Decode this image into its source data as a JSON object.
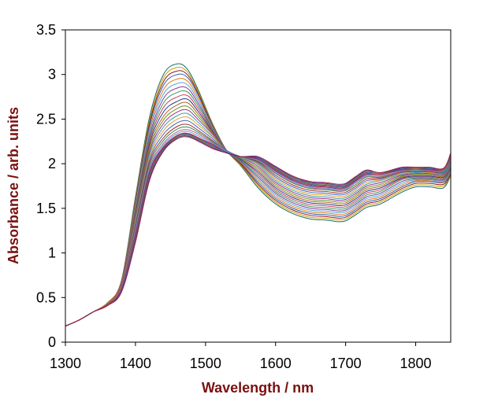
{
  "chart_data": {
    "type": "line",
    "xlabel": "Wavelength / nm",
    "ylabel": "Absorbance / arb. units",
    "xlim": [
      1300,
      1850
    ],
    "ylim": [
      0,
      3.5
    ],
    "x_ticks": [
      "1300",
      "1400",
      "1500",
      "1600",
      "1700",
      "1800"
    ],
    "y_ticks": [
      "0",
      "0.5",
      "1",
      "1.5",
      "2",
      "2.5",
      "3",
      "3.5"
    ],
    "grid": false,
    "legend": "none",
    "series_count": 26,
    "x": [
      1300,
      1320,
      1340,
      1360,
      1380,
      1400,
      1420,
      1440,
      1460,
      1475,
      1490,
      1510,
      1530,
      1550,
      1575,
      1600,
      1625,
      1650,
      1670,
      1680,
      1690,
      1700,
      1715,
      1730,
      1750,
      1780,
      1800,
      1820,
      1840,
      1850
    ],
    "series": [
      {
        "values": [
          0.18,
          0.25,
          0.34,
          0.44,
          0.69,
          1.63,
          2.52,
          3.0,
          3.12,
          3.05,
          2.82,
          2.45,
          2.15,
          1.98,
          1.73,
          1.55,
          1.44,
          1.38,
          1.37,
          1.36,
          1.35,
          1.36,
          1.43,
          1.51,
          1.55,
          1.68,
          1.74,
          1.74,
          1.73,
          1.87
        ],
        "color": "#1a6b6b"
      },
      {
        "values": [
          0.18,
          0.25,
          0.34,
          0.44,
          0.68,
          1.6,
          2.48,
          2.96,
          3.08,
          3.02,
          2.8,
          2.44,
          2.15,
          1.99,
          1.75,
          1.57,
          1.46,
          1.4,
          1.39,
          1.38,
          1.37,
          1.38,
          1.45,
          1.53,
          1.57,
          1.7,
          1.76,
          1.76,
          1.75,
          1.88
        ],
        "color": "#c8a000"
      },
      {
        "values": [
          0.18,
          0.25,
          0.34,
          0.44,
          0.68,
          1.58,
          2.45,
          2.92,
          3.04,
          2.99,
          2.78,
          2.43,
          2.15,
          2.0,
          1.77,
          1.59,
          1.48,
          1.42,
          1.41,
          1.4,
          1.39,
          1.4,
          1.47,
          1.55,
          1.59,
          1.72,
          1.78,
          1.78,
          1.77,
          1.89
        ],
        "color": "#8b1a1a"
      },
      {
        "values": [
          0.18,
          0.25,
          0.34,
          0.44,
          0.67,
          1.56,
          2.42,
          2.88,
          3.0,
          2.96,
          2.76,
          2.42,
          2.15,
          2.01,
          1.79,
          1.61,
          1.5,
          1.44,
          1.43,
          1.42,
          1.41,
          1.42,
          1.49,
          1.57,
          1.61,
          1.74,
          1.8,
          1.8,
          1.79,
          1.9
        ],
        "color": "#2f5fa8"
      },
      {
        "values": [
          0.18,
          0.25,
          0.34,
          0.44,
          0.67,
          1.54,
          2.38,
          2.83,
          2.95,
          2.92,
          2.73,
          2.41,
          2.15,
          2.02,
          1.81,
          1.63,
          1.52,
          1.46,
          1.45,
          1.44,
          1.43,
          1.44,
          1.51,
          1.59,
          1.63,
          1.76,
          1.81,
          1.81,
          1.8,
          1.91
        ],
        "color": "#e07b1a"
      },
      {
        "values": [
          0.18,
          0.25,
          0.34,
          0.43,
          0.66,
          1.52,
          2.35,
          2.78,
          2.9,
          2.88,
          2.7,
          2.4,
          2.15,
          2.03,
          1.83,
          1.65,
          1.54,
          1.48,
          1.47,
          1.46,
          1.45,
          1.46,
          1.53,
          1.61,
          1.65,
          1.78,
          1.82,
          1.82,
          1.81,
          1.92
        ],
        "color": "#5aa0d0"
      },
      {
        "values": [
          0.18,
          0.25,
          0.34,
          0.43,
          0.66,
          1.5,
          2.31,
          2.73,
          2.85,
          2.84,
          2.67,
          2.39,
          2.15,
          2.03,
          1.85,
          1.67,
          1.56,
          1.5,
          1.49,
          1.48,
          1.47,
          1.48,
          1.55,
          1.63,
          1.67,
          1.8,
          1.83,
          1.83,
          1.82,
          1.93
        ],
        "color": "#7b3fa0"
      },
      {
        "values": [
          0.18,
          0.25,
          0.34,
          0.43,
          0.65,
          1.48,
          2.28,
          2.68,
          2.8,
          2.8,
          2.64,
          2.38,
          2.15,
          2.04,
          1.87,
          1.69,
          1.58,
          1.52,
          1.51,
          1.5,
          1.49,
          1.5,
          1.57,
          1.65,
          1.69,
          1.82,
          1.84,
          1.84,
          1.83,
          1.94
        ],
        "color": "#3a9a5a"
      },
      {
        "values": [
          0.18,
          0.25,
          0.34,
          0.43,
          0.65,
          1.46,
          2.25,
          2.63,
          2.75,
          2.76,
          2.61,
          2.37,
          2.15,
          2.05,
          1.89,
          1.71,
          1.6,
          1.54,
          1.53,
          1.52,
          1.51,
          1.52,
          1.59,
          1.67,
          1.71,
          1.83,
          1.85,
          1.85,
          1.84,
          1.95
        ],
        "color": "#d04060"
      },
      {
        "values": [
          0.18,
          0.25,
          0.34,
          0.43,
          0.64,
          1.44,
          2.22,
          2.58,
          2.7,
          2.72,
          2.58,
          2.36,
          2.15,
          2.05,
          1.91,
          1.73,
          1.62,
          1.56,
          1.55,
          1.54,
          1.53,
          1.54,
          1.61,
          1.69,
          1.73,
          1.84,
          1.86,
          1.86,
          1.85,
          1.96
        ],
        "color": "#1f3f8f"
      },
      {
        "values": [
          0.18,
          0.25,
          0.34,
          0.43,
          0.64,
          1.42,
          2.19,
          2.53,
          2.66,
          2.68,
          2.55,
          2.35,
          2.15,
          2.06,
          1.93,
          1.75,
          1.64,
          1.58,
          1.57,
          1.56,
          1.55,
          1.56,
          1.63,
          1.71,
          1.75,
          1.85,
          1.87,
          1.87,
          1.86,
          1.97
        ],
        "color": "#b5651d"
      },
      {
        "values": [
          0.18,
          0.25,
          0.34,
          0.43,
          0.63,
          1.4,
          2.16,
          2.49,
          2.62,
          2.64,
          2.52,
          2.34,
          2.15,
          2.06,
          1.95,
          1.77,
          1.66,
          1.6,
          1.59,
          1.58,
          1.57,
          1.58,
          1.65,
          1.73,
          1.77,
          1.86,
          1.88,
          1.88,
          1.87,
          1.98
        ],
        "color": "#6a8f2f"
      },
      {
        "values": [
          0.18,
          0.25,
          0.34,
          0.42,
          0.63,
          1.38,
          2.13,
          2.45,
          2.58,
          2.6,
          2.49,
          2.33,
          2.15,
          2.07,
          1.97,
          1.79,
          1.68,
          1.62,
          1.61,
          1.6,
          1.59,
          1.6,
          1.67,
          1.75,
          1.79,
          1.87,
          1.89,
          1.89,
          1.88,
          1.99
        ],
        "color": "#9a2f8f"
      },
      {
        "values": [
          0.18,
          0.25,
          0.34,
          0.42,
          0.62,
          1.36,
          2.1,
          2.41,
          2.54,
          2.56,
          2.46,
          2.31,
          2.15,
          2.07,
          1.99,
          1.81,
          1.7,
          1.64,
          1.63,
          1.62,
          1.61,
          1.62,
          1.69,
          1.77,
          1.81,
          1.88,
          1.9,
          1.9,
          1.89,
          2.0
        ],
        "color": "#3fa0a0"
      },
      {
        "values": [
          0.18,
          0.25,
          0.34,
          0.42,
          0.62,
          1.34,
          2.07,
          2.37,
          2.5,
          2.52,
          2.43,
          2.3,
          2.15,
          2.08,
          2.0,
          1.83,
          1.72,
          1.66,
          1.65,
          1.64,
          1.63,
          1.64,
          1.71,
          1.79,
          1.82,
          1.89,
          1.91,
          1.9,
          1.9,
          2.01
        ],
        "color": "#e0a030"
      },
      {
        "values": [
          0.18,
          0.25,
          0.34,
          0.42,
          0.61,
          1.32,
          2.04,
          2.33,
          2.46,
          2.48,
          2.4,
          2.28,
          2.15,
          2.08,
          2.01,
          1.85,
          1.74,
          1.68,
          1.67,
          1.66,
          1.65,
          1.66,
          1.73,
          1.81,
          1.83,
          1.9,
          1.91,
          1.91,
          1.9,
          2.02
        ],
        "color": "#4060c0"
      },
      {
        "values": [
          0.18,
          0.25,
          0.34,
          0.42,
          0.61,
          1.3,
          2.01,
          2.29,
          2.42,
          2.44,
          2.37,
          2.26,
          2.14,
          2.08,
          2.02,
          1.87,
          1.76,
          1.7,
          1.69,
          1.68,
          1.67,
          1.68,
          1.75,
          1.83,
          1.84,
          1.91,
          1.92,
          1.91,
          1.91,
          2.03
        ],
        "color": "#a03030"
      },
      {
        "values": [
          0.18,
          0.25,
          0.34,
          0.42,
          0.6,
          1.28,
          1.98,
          2.26,
          2.39,
          2.41,
          2.35,
          2.25,
          2.14,
          2.08,
          2.03,
          1.89,
          1.78,
          1.72,
          1.71,
          1.7,
          1.69,
          1.7,
          1.77,
          1.85,
          1.85,
          1.92,
          1.92,
          1.92,
          1.91,
          2.04
        ],
        "color": "#2f8f4f"
      },
      {
        "values": [
          0.18,
          0.25,
          0.34,
          0.42,
          0.6,
          1.26,
          1.95,
          2.23,
          2.36,
          2.38,
          2.33,
          2.24,
          2.14,
          2.08,
          2.04,
          1.9,
          1.79,
          1.73,
          1.72,
          1.71,
          1.7,
          1.71,
          1.79,
          1.86,
          1.86,
          1.92,
          1.93,
          1.92,
          1.92,
          2.05
        ],
        "color": "#c06090"
      },
      {
        "values": [
          0.18,
          0.25,
          0.34,
          0.42,
          0.59,
          1.24,
          1.93,
          2.21,
          2.34,
          2.36,
          2.31,
          2.23,
          2.14,
          2.08,
          2.05,
          1.91,
          1.8,
          1.74,
          1.73,
          1.72,
          1.71,
          1.72,
          1.8,
          1.87,
          1.87,
          1.93,
          1.93,
          1.93,
          1.92,
          2.06
        ],
        "color": "#60a0e0"
      },
      {
        "values": [
          0.18,
          0.25,
          0.34,
          0.42,
          0.59,
          1.22,
          1.91,
          2.19,
          2.32,
          2.34,
          2.29,
          2.22,
          2.13,
          2.08,
          2.05,
          1.92,
          1.81,
          1.75,
          1.74,
          1.73,
          1.72,
          1.73,
          1.81,
          1.88,
          1.88,
          1.93,
          1.94,
          1.93,
          1.93,
          2.07
        ],
        "color": "#703090"
      },
      {
        "values": [
          0.18,
          0.25,
          0.34,
          0.42,
          0.58,
          1.2,
          1.89,
          2.18,
          2.32,
          2.34,
          2.29,
          2.21,
          2.13,
          2.08,
          2.06,
          1.93,
          1.82,
          1.76,
          1.75,
          1.74,
          1.73,
          1.74,
          1.82,
          1.89,
          1.88,
          1.94,
          1.94,
          1.94,
          1.93,
          2.08
        ],
        "color": "#d0302f"
      },
      {
        "values": [
          0.18,
          0.25,
          0.34,
          0.41,
          0.58,
          1.18,
          1.87,
          2.17,
          2.31,
          2.33,
          2.28,
          2.2,
          2.13,
          2.08,
          2.06,
          1.94,
          1.83,
          1.77,
          1.76,
          1.75,
          1.74,
          1.75,
          1.83,
          1.9,
          1.89,
          1.94,
          1.95,
          1.94,
          1.94,
          2.09
        ],
        "color": "#2060a0"
      },
      {
        "values": [
          0.18,
          0.25,
          0.34,
          0.41,
          0.57,
          1.16,
          1.85,
          2.16,
          2.3,
          2.32,
          2.27,
          2.19,
          2.12,
          2.08,
          2.07,
          1.95,
          1.84,
          1.78,
          1.77,
          1.76,
          1.75,
          1.76,
          1.84,
          1.91,
          1.89,
          1.95,
          1.95,
          1.95,
          1.94,
          2.1
        ],
        "color": "#8f6f2f"
      },
      {
        "values": [
          0.18,
          0.25,
          0.34,
          0.41,
          0.57,
          1.14,
          1.83,
          2.15,
          2.29,
          2.31,
          2.26,
          2.18,
          2.12,
          2.08,
          2.07,
          1.96,
          1.85,
          1.79,
          1.78,
          1.77,
          1.76,
          1.77,
          1.85,
          1.92,
          1.9,
          1.95,
          1.96,
          1.95,
          1.95,
          2.11
        ],
        "color": "#3f3f8f"
      },
      {
        "values": [
          0.18,
          0.25,
          0.34,
          0.41,
          0.56,
          1.12,
          1.81,
          2.14,
          2.28,
          2.3,
          2.25,
          2.17,
          2.12,
          2.08,
          2.08,
          1.97,
          1.86,
          1.8,
          1.79,
          1.78,
          1.77,
          1.78,
          1.86,
          1.93,
          1.9,
          1.96,
          1.96,
          1.96,
          1.95,
          2.12
        ],
        "color": "#a02050"
      }
    ]
  }
}
